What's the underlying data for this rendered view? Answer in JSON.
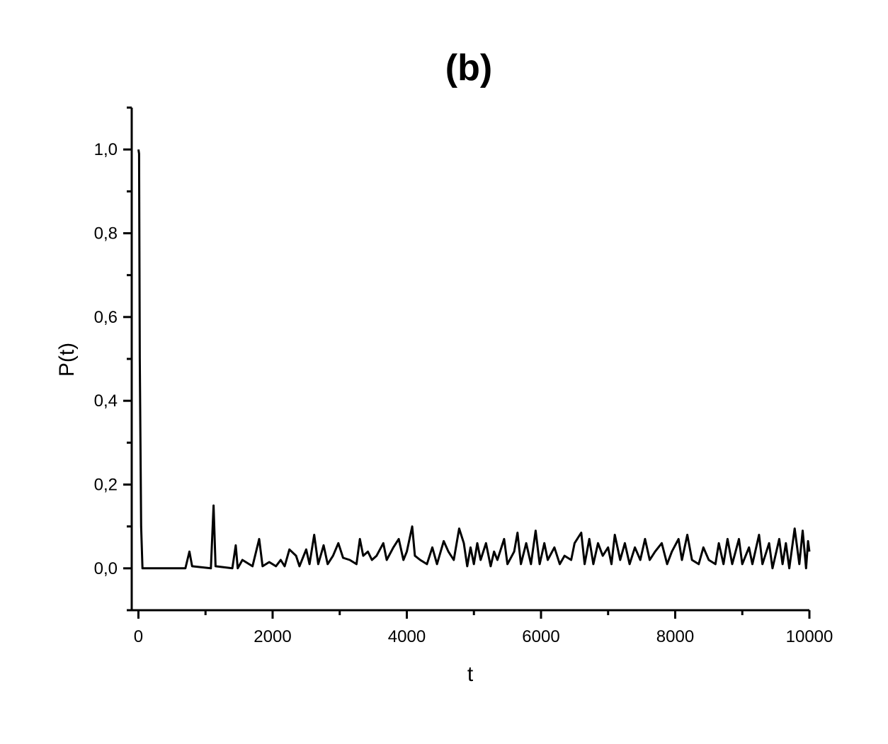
{
  "chart_data": {
    "type": "line",
    "title": "(b)",
    "x_label": "t",
    "y_label": "P(t)",
    "xlim": [
      -100,
      10000
    ],
    "ylim": [
      -0.1,
      1.1
    ],
    "xticks": [
      0,
      2000,
      4000,
      6000,
      8000,
      10000
    ],
    "xminorticks": [
      1000,
      3000,
      5000,
      7000,
      9000
    ],
    "yticks": [
      {
        "value": 0,
        "label": "0,0"
      },
      {
        "value": 0.2,
        "label": "0,2"
      },
      {
        "value": 0.4,
        "label": "0,4"
      },
      {
        "value": 0.6,
        "label": "0,6"
      },
      {
        "value": 0.8,
        "label": "0,8"
      },
      {
        "value": 1.0,
        "label": "1,0"
      }
    ],
    "yminorticks": [
      -0.1,
      0.1,
      0.3,
      0.5,
      0.7,
      0.9,
      1.1
    ],
    "series": [
      {
        "color": "#000000",
        "x": [
          0,
          10,
          20,
          40,
          60,
          700,
          760,
          800,
          1080,
          1120,
          1150,
          1400,
          1450,
          1480,
          1550,
          1700,
          1800,
          1850,
          1950,
          2050,
          2120,
          2180,
          2250,
          2350,
          2400,
          2500,
          2550,
          2620,
          2680,
          2760,
          2820,
          2900,
          2980,
          3050,
          3150,
          3250,
          3300,
          3350,
          3420,
          3480,
          3550,
          3650,
          3700,
          3800,
          3880,
          3950,
          4000,
          4080,
          4120,
          4200,
          4300,
          4380,
          4450,
          4550,
          4620,
          4700,
          4780,
          4850,
          4900,
          4950,
          5000,
          5050,
          5100,
          5180,
          5250,
          5300,
          5350,
          5450,
          5500,
          5600,
          5650,
          5700,
          5780,
          5850,
          5920,
          5980,
          6050,
          6100,
          6200,
          6280,
          6350,
          6450,
          6500,
          6600,
          6650,
          6720,
          6780,
          6850,
          6920,
          7000,
          7050,
          7100,
          7180,
          7250,
          7320,
          7400,
          7480,
          7550,
          7620,
          7700,
          7800,
          7880,
          7950,
          8050,
          8100,
          8180,
          8250,
          8350,
          8420,
          8500,
          8600,
          8650,
          8720,
          8780,
          8850,
          8950,
          9000,
          9100,
          9150,
          9250,
          9300,
          9400,
          9450,
          9550,
          9600,
          9650,
          9700,
          9780,
          9850,
          9900,
          9950,
          9980,
          10000
        ],
        "values": [
          1.0,
          0.99,
          0.5,
          0.1,
          0.0,
          0.0,
          0.04,
          0.005,
          0.0,
          0.15,
          0.005,
          0.0,
          0.055,
          0.0,
          0.02,
          0.005,
          0.07,
          0.005,
          0.015,
          0.005,
          0.02,
          0.005,
          0.045,
          0.03,
          0.005,
          0.045,
          0.01,
          0.08,
          0.01,
          0.055,
          0.01,
          0.03,
          0.06,
          0.025,
          0.02,
          0.01,
          0.07,
          0.03,
          0.04,
          0.02,
          0.03,
          0.06,
          0.02,
          0.05,
          0.07,
          0.02,
          0.04,
          0.1,
          0.03,
          0.02,
          0.01,
          0.05,
          0.01,
          0.065,
          0.04,
          0.02,
          0.095,
          0.06,
          0.005,
          0.05,
          0.01,
          0.06,
          0.02,
          0.06,
          0.005,
          0.04,
          0.02,
          0.07,
          0.01,
          0.04,
          0.085,
          0.01,
          0.06,
          0.01,
          0.09,
          0.01,
          0.06,
          0.02,
          0.05,
          0.01,
          0.03,
          0.02,
          0.06,
          0.085,
          0.01,
          0.07,
          0.01,
          0.06,
          0.03,
          0.05,
          0.01,
          0.08,
          0.02,
          0.06,
          0.01,
          0.05,
          0.02,
          0.07,
          0.02,
          0.04,
          0.06,
          0.01,
          0.04,
          0.07,
          0.02,
          0.08,
          0.02,
          0.01,
          0.05,
          0.02,
          0.01,
          0.06,
          0.01,
          0.07,
          0.01,
          0.07,
          0.01,
          0.05,
          0.01,
          0.08,
          0.01,
          0.06,
          0.0,
          0.07,
          0.01,
          0.06,
          0.0,
          0.095,
          0.01,
          0.09,
          0.0,
          0.065,
          0.04
        ]
      }
    ]
  }
}
